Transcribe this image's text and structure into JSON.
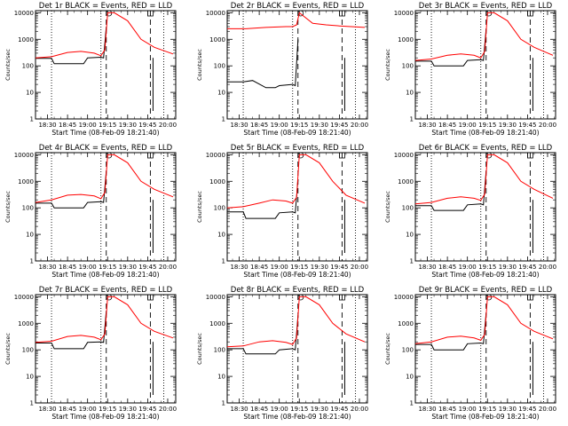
{
  "colors": {
    "events": "#000000",
    "lld": "#ff0000",
    "background": "#ffffff"
  },
  "chart_data": [
    {
      "type": "line",
      "title": "Det 1r BLACK = Events, RED = LLD",
      "xlabel": "Start Time (08-Feb-09 18:21:40)",
      "ylabel": "Counts/sec",
      "x_ticks": [
        "18:30",
        "18:45",
        "19:00",
        "19:15",
        "19:30",
        "19:45",
        "20:00"
      ],
      "y_ticks": [
        "1",
        "10",
        "100",
        "1000",
        "10000"
      ],
      "xlim": [
        "18:21",
        "20:06"
      ],
      "ylim": [
        1,
        12000
      ],
      "log_y": true,
      "series": [
        {
          "color": "#000000",
          "x": [
            "18:21",
            "18:33",
            "18:35",
            "18:45",
            "18:57",
            "19:00",
            "19:10",
            "19:12",
            "19:14"
          ],
          "values": [
            190,
            190,
            120,
            120,
            120,
            200,
            210,
            200,
            3000
          ]
        },
        {
          "color": "#ff0000",
          "x": [
            "18:21",
            "18:33",
            "18:45",
            "18:55",
            "19:05",
            "19:10",
            "19:13",
            "19:15",
            "19:20",
            "19:30",
            "19:40",
            "19:50",
            "20:04"
          ],
          "values": [
            200,
            220,
            320,
            350,
            300,
            240,
            400,
            10000,
            10000,
            5000,
            1000,
            500,
            280
          ]
        }
      ]
    },
    {
      "type": "line",
      "title": "Det 2r BLACK = Events, RED = LLD",
      "xlabel": "Start Time (08-Feb-09 18:21:40)",
      "ylabel": "Counts/sec",
      "x_ticks": [
        "18:30",
        "18:45",
        "19:00",
        "19:15",
        "19:30",
        "19:45",
        "20:00"
      ],
      "y_ticks": [
        "1",
        "10",
        "100",
        "1000",
        "10000"
      ],
      "xlim": [
        "18:21",
        "20:06"
      ],
      "ylim": [
        1,
        12000
      ],
      "log_y": true,
      "series": [
        {
          "color": "#000000",
          "x": [
            "18:21",
            "18:33",
            "18:40",
            "18:50",
            "18:57",
            "19:00",
            "19:10",
            "19:12",
            "19:14"
          ],
          "values": [
            25,
            25,
            28,
            15,
            15,
            18,
            20,
            18,
            1000
          ]
        },
        {
          "color": "#ff0000",
          "x": [
            "18:21",
            "18:35",
            "18:50",
            "19:05",
            "19:10",
            "19:13",
            "19:15",
            "19:25",
            "19:35",
            "19:45",
            "20:04"
          ],
          "values": [
            2500,
            2500,
            2800,
            3000,
            3000,
            3500,
            10000,
            4000,
            3500,
            3200,
            2800
          ]
        }
      ]
    },
    {
      "type": "line",
      "title": "Det 3r BLACK = Events, RED = LLD",
      "xlabel": "Start Time (08-Feb-09 18:21:40)",
      "ylabel": "Counts/sec",
      "x_ticks": [
        "18:30",
        "18:45",
        "19:00",
        "19:15",
        "19:30",
        "19:45",
        "20:00"
      ],
      "y_ticks": [
        "1",
        "10",
        "100",
        "1000",
        "10000"
      ],
      "xlim": [
        "18:21",
        "20:06"
      ],
      "ylim": [
        1,
        12000
      ],
      "log_y": true,
      "series": [
        {
          "color": "#000000",
          "x": [
            "18:21",
            "18:33",
            "18:35",
            "18:45",
            "18:57",
            "19:00",
            "19:10",
            "19:12",
            "19:14"
          ],
          "values": [
            150,
            150,
            100,
            100,
            100,
            160,
            170,
            160,
            2500
          ]
        },
        {
          "color": "#ff0000",
          "x": [
            "18:21",
            "18:33",
            "18:45",
            "18:55",
            "19:05",
            "19:10",
            "19:13",
            "19:15",
            "19:20",
            "19:30",
            "19:40",
            "19:50",
            "20:04"
          ],
          "values": [
            160,
            180,
            250,
            280,
            250,
            200,
            350,
            10000,
            10000,
            5000,
            1000,
            500,
            250
          ]
        }
      ]
    },
    {
      "type": "line",
      "title": "Det 4r BLACK = Events, RED = LLD",
      "xlabel": "Start Time (08-Feb-09 18:21:40)",
      "ylabel": "Counts/sec",
      "x_ticks": [
        "18:30",
        "18:45",
        "19:00",
        "19:15",
        "19:30",
        "19:45",
        "20:00"
      ],
      "y_ticks": [
        "1",
        "10",
        "100",
        "1000",
        "10000"
      ],
      "xlim": [
        "18:21",
        "20:06"
      ],
      "ylim": [
        1,
        12000
      ],
      "log_y": true,
      "series": [
        {
          "color": "#000000",
          "x": [
            "18:21",
            "18:33",
            "18:35",
            "18:45",
            "18:57",
            "19:00",
            "19:10",
            "19:12",
            "19:14"
          ],
          "values": [
            150,
            150,
            100,
            100,
            100,
            160,
            170,
            160,
            2500
          ]
        },
        {
          "color": "#ff0000",
          "x": [
            "18:21",
            "18:33",
            "18:45",
            "18:55",
            "19:05",
            "19:10",
            "19:13",
            "19:15",
            "19:20",
            "19:30",
            "19:40",
            "19:50",
            "20:04"
          ],
          "values": [
            160,
            200,
            300,
            320,
            280,
            220,
            380,
            10000,
            10000,
            5000,
            1000,
            500,
            260
          ]
        }
      ]
    },
    {
      "type": "line",
      "title": "Det 5r BLACK = Events, RED = LLD",
      "xlabel": "Start Time (08-Feb-09 18:21:40)",
      "ylabel": "Counts/sec",
      "x_ticks": [
        "18:30",
        "18:45",
        "19:00",
        "19:15",
        "19:30",
        "19:45",
        "20:00"
      ],
      "y_ticks": [
        "1",
        "10",
        "100",
        "1000",
        "10000"
      ],
      "xlim": [
        "18:21",
        "20:06"
      ],
      "ylim": [
        1,
        12000
      ],
      "log_y": true,
      "series": [
        {
          "color": "#000000",
          "x": [
            "18:21",
            "18:33",
            "18:35",
            "18:45",
            "18:57",
            "19:00",
            "19:10",
            "19:12",
            "19:14"
          ],
          "values": [
            70,
            70,
            40,
            40,
            40,
            65,
            70,
            65,
            1200
          ]
        },
        {
          "color": "#ff0000",
          "x": [
            "18:21",
            "18:33",
            "18:45",
            "18:55",
            "19:05",
            "19:10",
            "19:13",
            "19:15",
            "19:20",
            "19:30",
            "19:40",
            "19:50",
            "20:04"
          ],
          "values": [
            100,
            110,
            150,
            200,
            180,
            150,
            250,
            10000,
            10000,
            5000,
            1000,
            300,
            150
          ]
        }
      ]
    },
    {
      "type": "line",
      "title": "Det 6r BLACK = Events, RED = LLD",
      "xlabel": "Start Time (08-Feb-09 18:21:40)",
      "ylabel": "Counts/sec",
      "x_ticks": [
        "18:30",
        "18:45",
        "19:00",
        "19:15",
        "19:30",
        "19:45",
        "20:00"
      ],
      "y_ticks": [
        "1",
        "10",
        "100",
        "1000",
        "10000"
      ],
      "xlim": [
        "18:21",
        "20:06"
      ],
      "ylim": [
        1,
        12000
      ],
      "log_y": true,
      "series": [
        {
          "color": "#000000",
          "x": [
            "18:21",
            "18:33",
            "18:35",
            "18:45",
            "18:57",
            "19:00",
            "19:10",
            "19:12",
            "19:14"
          ],
          "values": [
            120,
            120,
            80,
            80,
            80,
            130,
            140,
            130,
            2500
          ]
        },
        {
          "color": "#ff0000",
          "x": [
            "18:21",
            "18:33",
            "18:45",
            "18:55",
            "19:05",
            "19:10",
            "19:13",
            "19:15",
            "19:20",
            "19:30",
            "19:40",
            "19:50",
            "20:04"
          ],
          "values": [
            140,
            160,
            230,
            260,
            230,
            190,
            330,
            10000,
            10000,
            5000,
            1000,
            500,
            230
          ]
        }
      ]
    },
    {
      "type": "line",
      "title": "Det 7r BLACK = Events, RED = LLD",
      "xlabel": "Start Time (08-Feb-09 18:21:40)",
      "ylabel": "Counts/sec",
      "x_ticks": [
        "18:30",
        "18:45",
        "19:00",
        "19:15",
        "19:30",
        "19:45",
        "20:00"
      ],
      "y_ticks": [
        "1",
        "10",
        "100",
        "1000",
        "10000"
      ],
      "xlim": [
        "18:21",
        "20:06"
      ],
      "ylim": [
        1,
        12000
      ],
      "log_y": true,
      "series": [
        {
          "color": "#000000",
          "x": [
            "18:21",
            "18:33",
            "18:35",
            "18:45",
            "18:57",
            "19:00",
            "19:10",
            "19:12",
            "19:14"
          ],
          "values": [
            180,
            180,
            110,
            110,
            110,
            190,
            200,
            190,
            3000
          ]
        },
        {
          "color": "#ff0000",
          "x": [
            "18:21",
            "18:33",
            "18:45",
            "18:55",
            "19:05",
            "19:10",
            "19:13",
            "19:15",
            "19:20",
            "19:30",
            "19:40",
            "19:50",
            "20:04"
          ],
          "values": [
            190,
            210,
            320,
            350,
            300,
            240,
            400,
            10000,
            10000,
            5000,
            1000,
            500,
            280
          ]
        }
      ]
    },
    {
      "type": "line",
      "title": "Det 8r BLACK = Events, RED = LLD",
      "xlabel": "Start Time (08-Feb-09 18:21:40)",
      "ylabel": "Counts/sec",
      "x_ticks": [
        "18:30",
        "18:45",
        "19:00",
        "19:15",
        "19:30",
        "19:45",
        "20:00"
      ],
      "y_ticks": [
        "1",
        "10",
        "100",
        "1000",
        "10000"
      ],
      "xlim": [
        "18:21",
        "20:06"
      ],
      "ylim": [
        1,
        12000
      ],
      "log_y": true,
      "series": [
        {
          "color": "#000000",
          "x": [
            "18:21",
            "18:33",
            "18:35",
            "18:45",
            "18:57",
            "19:00",
            "19:10",
            "19:12",
            "19:14"
          ],
          "values": [
            110,
            110,
            70,
            70,
            70,
            100,
            110,
            100,
            2000
          ]
        },
        {
          "color": "#ff0000",
          "x": [
            "18:21",
            "18:33",
            "18:45",
            "18:55",
            "19:05",
            "19:10",
            "19:13",
            "19:15",
            "19:20",
            "19:30",
            "19:40",
            "19:50",
            "20:04"
          ],
          "values": [
            130,
            140,
            200,
            220,
            190,
            160,
            280,
            10000,
            10000,
            5000,
            1000,
            400,
            200
          ]
        }
      ]
    },
    {
      "type": "line",
      "title": "Det 9r BLACK = Events, RED = LLD",
      "xlabel": "Start Time (08-Feb-09 18:21:40)",
      "ylabel": "Counts/sec",
      "x_ticks": [
        "18:30",
        "18:45",
        "19:00",
        "19:15",
        "19:30",
        "19:45",
        "20:00"
      ],
      "y_ticks": [
        "1",
        "10",
        "100",
        "1000",
        "10000"
      ],
      "xlim": [
        "18:21",
        "20:06"
      ],
      "ylim": [
        1,
        12000
      ],
      "log_y": true,
      "series": [
        {
          "color": "#000000",
          "x": [
            "18:21",
            "18:33",
            "18:35",
            "18:45",
            "18:57",
            "19:00",
            "19:10",
            "19:12",
            "19:14"
          ],
          "values": [
            160,
            160,
            100,
            100,
            100,
            170,
            180,
            170,
            2500
          ]
        },
        {
          "color": "#ff0000",
          "x": [
            "18:21",
            "18:33",
            "18:45",
            "18:55",
            "19:05",
            "19:10",
            "19:13",
            "19:15",
            "19:20",
            "19:30",
            "19:40",
            "19:50",
            "20:04"
          ],
          "values": [
            170,
            200,
            300,
            330,
            280,
            230,
            380,
            10000,
            10000,
            5000,
            1000,
            500,
            260
          ]
        }
      ]
    }
  ]
}
